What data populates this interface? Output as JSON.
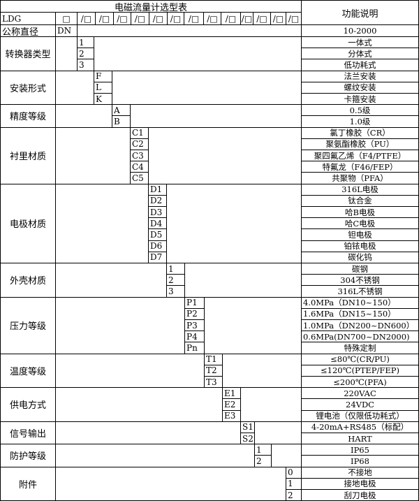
{
  "title": "电磁流量计选型表",
  "function_header": "功能说明",
  "header_row": {
    "model": "LDG",
    "first_code": "□",
    "slot_code": "/□",
    "slot_count": 13
  },
  "nominal_diameter": {
    "label": "公称直径",
    "code": "DN",
    "desc": "10-2000"
  },
  "groups": [
    {
      "label": "转换器类型",
      "col": 0,
      "items": [
        {
          "code": "1",
          "desc": "一体式"
        },
        {
          "code": "2",
          "desc": "分体式"
        },
        {
          "code": "3",
          "desc": "低功耗式"
        }
      ]
    },
    {
      "label": "安装形式",
      "col": 1,
      "items": [
        {
          "code": "F",
          "desc": "法兰安装"
        },
        {
          "code": "L",
          "desc": "螺纹安装"
        },
        {
          "code": "K",
          "desc": "卡箍安装"
        }
      ]
    },
    {
      "label": "精度等级",
      "col": 2,
      "items": [
        {
          "code": "A",
          "desc": "0.5级"
        },
        {
          "code": "B",
          "desc": "1.0级"
        }
      ]
    },
    {
      "label": "衬里材质",
      "col": 3,
      "items": [
        {
          "code": "C1",
          "desc": "氯丁橡胶（CR）"
        },
        {
          "code": "C2",
          "desc": "聚氨酯橡胶（PU）"
        },
        {
          "code": "C3",
          "desc": "聚四氟乙烯（F4/PTFE）"
        },
        {
          "code": "C4",
          "desc": "特氟龙（F46/FEP）"
        },
        {
          "code": "C5",
          "desc": "共聚物（PFA）"
        }
      ]
    },
    {
      "label": "电极材质",
      "col": 4,
      "items": [
        {
          "code": "D1",
          "desc": "316L电极"
        },
        {
          "code": "D2",
          "desc": "钛合金"
        },
        {
          "code": "D3",
          "desc": "哈B电极"
        },
        {
          "code": "D4",
          "desc": "哈C电极"
        },
        {
          "code": "D5",
          "desc": "钽电极"
        },
        {
          "code": "D6",
          "desc": "铂铱电极"
        },
        {
          "code": "D7",
          "desc": "碳化钨"
        }
      ]
    },
    {
      "label": "外壳材质",
      "col": 5,
      "items": [
        {
          "code": "1",
          "desc": "碳钢"
        },
        {
          "code": "2",
          "desc": "304不锈钢"
        },
        {
          "code": "3",
          "desc": "316L不锈钢"
        }
      ]
    },
    {
      "label": "压力等级",
      "col": 6,
      "items": [
        {
          "code": "P1",
          "desc": "4.0MPa（DN10~150）"
        },
        {
          "code": "P2",
          "desc": "1.6MPa（DN15~150）"
        },
        {
          "code": "P3",
          "desc": "1.0MPa（DN200~DN600）"
        },
        {
          "code": "P4",
          "desc": "0.6MPa(DN700~DN2000)"
        },
        {
          "code": "Pn",
          "desc": "特殊定制"
        }
      ]
    },
    {
      "label": "温度等级",
      "col": 7,
      "items": [
        {
          "code": "T1",
          "desc": "≤80℃(CR/PU)"
        },
        {
          "code": "T2",
          "desc": "≤120℃(PTEP/FEP)"
        },
        {
          "code": "T3",
          "desc": "≤200℃(PFA)"
        }
      ]
    },
    {
      "label": "供电方式",
      "col": 8,
      "items": [
        {
          "code": "E1",
          "desc": "220VAC"
        },
        {
          "code": "E2",
          "desc": "24VDC"
        },
        {
          "code": "E3",
          "desc": "锂电池（仅限低功耗式）"
        }
      ]
    },
    {
      "label": "信号输出",
      "col": 9,
      "items": [
        {
          "code": "S1",
          "desc": "4-20mA+RS485（标配）"
        },
        {
          "code": "S2",
          "desc": "HART"
        }
      ]
    },
    {
      "label": "防护等级",
      "col": 10,
      "items": [
        {
          "code": "1",
          "desc": "IP65"
        },
        {
          "code": "2",
          "desc": "IP68"
        }
      ]
    },
    {
      "label": "附件",
      "col": 11,
      "items": [
        {
          "code": "0",
          "desc": "不接地"
        },
        {
          "code": "1",
          "desc": "接地电极"
        },
        {
          "code": "2",
          "desc": "刮刀电极"
        }
      ]
    }
  ]
}
